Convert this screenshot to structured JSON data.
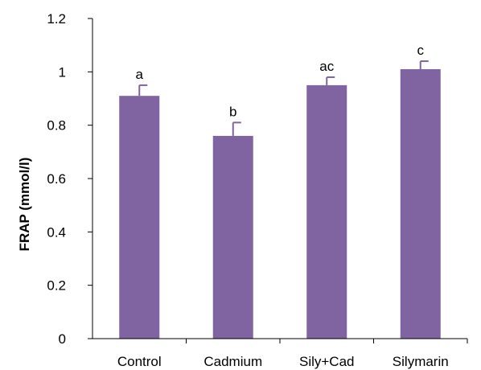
{
  "chart_data": {
    "type": "bar",
    "title": "",
    "xlabel": "",
    "ylabel": "FRAP (mmol/l)",
    "categories": [
      "Control",
      "Cadmium",
      "Sily+Cad",
      "Silymarin"
    ],
    "values": [
      0.91,
      0.76,
      0.95,
      1.01
    ],
    "error_plus": [
      0.04,
      0.05,
      0.03,
      0.03
    ],
    "significance_labels": [
      "a",
      "b",
      "ac",
      "c"
    ],
    "ylim": [
      0,
      1.2
    ],
    "yticks": [
      0,
      0.2,
      0.4,
      0.6,
      0.8,
      1,
      1.2
    ],
    "ytick_labels": [
      "0",
      "0.2",
      "0.4",
      "0.6",
      "0.8",
      "1",
      "1.2"
    ],
    "grid": false,
    "legend": "none",
    "colors": {
      "bar": "#8064A2",
      "axis": "#000000"
    }
  }
}
